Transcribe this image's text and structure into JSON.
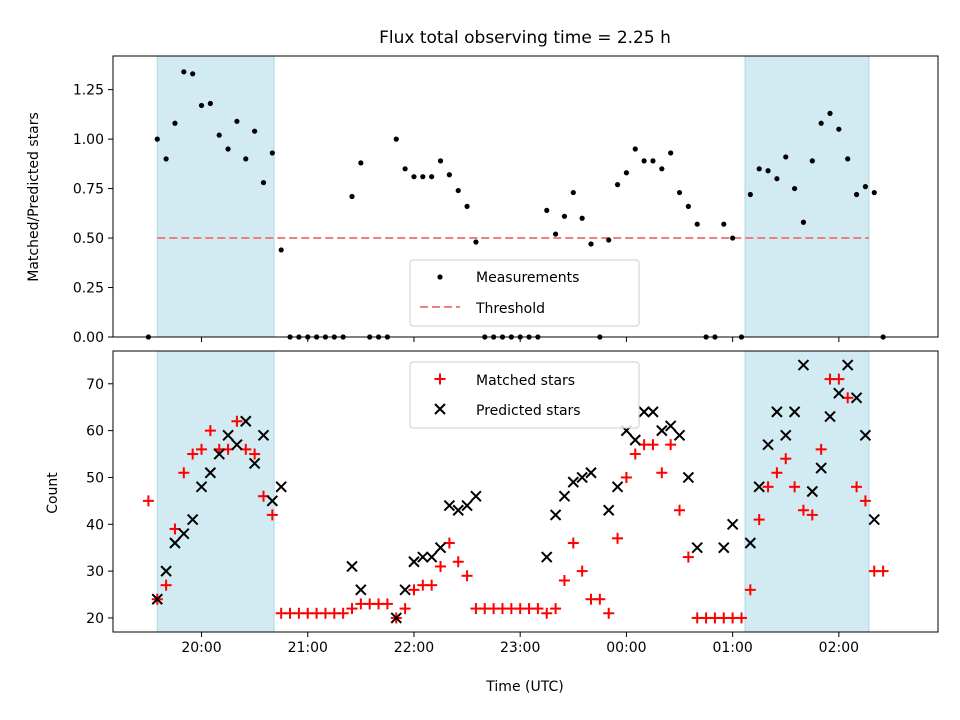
{
  "chart_data": {
    "title": "Flux total observing time = 2.25 h",
    "x_unit": "hours after 19:00 UTC (plotted axis)",
    "xlabel": "Time (UTC)",
    "xlim": [
      "19:10",
      "02:56"
    ],
    "x_ticks": [
      {
        "x": "20:00",
        "label": "20:00"
      },
      {
        "x": "21:00",
        "label": "21:00"
      },
      {
        "x": "22:00",
        "label": "22:00"
      },
      {
        "x": "23:00",
        "label": "23:00"
      },
      {
        "x": "00:00",
        "label": "00:00"
      },
      {
        "x": "01:00",
        "label": "01:00"
      },
      {
        "x": "02:00",
        "label": "02:00"
      }
    ],
    "shaded_spans": [
      [
        "19:35",
        "20:41"
      ],
      [
        "01:07",
        "02:17"
      ]
    ],
    "shade_color": "#add8e6",
    "top": {
      "type": "scatter",
      "ylabel": "Matched/Predicted stars",
      "ylim": [
        0,
        1.42
      ],
      "y_ticks": [
        "0.00",
        "0.25",
        "0.50",
        "0.75",
        "1.00",
        "1.25"
      ],
      "threshold": 0.5,
      "threshold_span": [
        "19:35",
        "02:17"
      ],
      "threshold_color": "#f08080",
      "legend": {
        "position": "lower center",
        "measurements": "Measurements",
        "threshold": "Threshold"
      },
      "measurements": [
        [
          "19:30",
          0
        ],
        [
          "19:35",
          1.0
        ],
        [
          "19:40",
          0.9
        ],
        [
          "19:45",
          1.08
        ],
        [
          "19:50",
          1.34
        ],
        [
          "19:55",
          1.33
        ],
        [
          "20:00",
          1.17
        ],
        [
          "20:05",
          1.18
        ],
        [
          "20:10",
          1.02
        ],
        [
          "20:15",
          0.95
        ],
        [
          "20:20",
          1.09
        ],
        [
          "20:25",
          0.9
        ],
        [
          "20:30",
          1.04
        ],
        [
          "20:35",
          0.78
        ],
        [
          "20:40",
          0.93
        ],
        [
          "20:45",
          0.44
        ],
        [
          "20:50",
          0
        ],
        [
          "20:55",
          0
        ],
        [
          "21:00",
          0
        ],
        [
          "21:05",
          0
        ],
        [
          "21:10",
          0
        ],
        [
          "21:15",
          0
        ],
        [
          "21:20",
          0
        ],
        [
          "21:25",
          0.71
        ],
        [
          "21:30",
          0.88
        ],
        [
          "21:35",
          0
        ],
        [
          "21:40",
          0
        ],
        [
          "21:45",
          0
        ],
        [
          "21:50",
          1.0
        ],
        [
          "21:55",
          0.85
        ],
        [
          "22:00",
          0.81
        ],
        [
          "22:05",
          0.81
        ],
        [
          "22:10",
          0.81
        ],
        [
          "22:15",
          0.89
        ],
        [
          "22:20",
          0.82
        ],
        [
          "22:25",
          0.74
        ],
        [
          "22:30",
          0.66
        ],
        [
          "22:35",
          0.48
        ],
        [
          "22:40",
          0
        ],
        [
          "22:45",
          0
        ],
        [
          "22:50",
          0
        ],
        [
          "22:55",
          0
        ],
        [
          "23:00",
          0
        ],
        [
          "23:05",
          0
        ],
        [
          "23:10",
          0
        ],
        [
          "23:15",
          0.64
        ],
        [
          "23:20",
          0.52
        ],
        [
          "23:25",
          0.61
        ],
        [
          "23:30",
          0.73
        ],
        [
          "23:35",
          0.6
        ],
        [
          "23:40",
          0.47
        ],
        [
          "23:45",
          0
        ],
        [
          "23:50",
          0.49
        ],
        [
          "23:55",
          0.77
        ],
        [
          "00:00",
          0.83
        ],
        [
          "00:05",
          0.95
        ],
        [
          "00:10",
          0.89
        ],
        [
          "00:15",
          0.89
        ],
        [
          "00:20",
          0.85
        ],
        [
          "00:25",
          0.93
        ],
        [
          "00:30",
          0.73
        ],
        [
          "00:35",
          0.66
        ],
        [
          "00:40",
          0.57
        ],
        [
          "00:45",
          0
        ],
        [
          "00:50",
          0
        ],
        [
          "00:55",
          0.57
        ],
        [
          "01:00",
          0.5
        ],
        [
          "01:05",
          0
        ],
        [
          "01:10",
          0.72
        ],
        [
          "01:15",
          0.85
        ],
        [
          "01:20",
          0.84
        ],
        [
          "01:25",
          0.8
        ],
        [
          "01:30",
          0.91
        ],
        [
          "01:35",
          0.75
        ],
        [
          "01:40",
          0.58
        ],
        [
          "01:45",
          0.89
        ],
        [
          "01:50",
          1.08
        ],
        [
          "01:55",
          1.13
        ],
        [
          "02:00",
          1.05
        ],
        [
          "02:05",
          0.9
        ],
        [
          "02:10",
          0.72
        ],
        [
          "02:15",
          0.76
        ],
        [
          "02:20",
          0.73
        ],
        [
          "02:25",
          0
        ]
      ]
    },
    "bottom": {
      "type": "scatter",
      "ylabel": "Count",
      "ylim": [
        17,
        77
      ],
      "y_ticks": [
        "20",
        "30",
        "40",
        "50",
        "60",
        "70"
      ],
      "legend": {
        "position": "upper center"
      },
      "series": [
        {
          "name": "Matched stars",
          "marker": "plus",
          "color": "#ff0000",
          "points": [
            [
              "19:30",
              45
            ],
            [
              "19:35",
              24
            ],
            [
              "19:40",
              27
            ],
            [
              "19:45",
              39
            ],
            [
              "19:50",
              51
            ],
            [
              "19:55",
              55
            ],
            [
              "20:00",
              56
            ],
            [
              "20:05",
              60
            ],
            [
              "20:10",
              56
            ],
            [
              "20:15",
              56
            ],
            [
              "20:20",
              62
            ],
            [
              "20:25",
              56
            ],
            [
              "20:30",
              55
            ],
            [
              "20:35",
              46
            ],
            [
              "20:40",
              42
            ],
            [
              "20:45",
              21
            ],
            [
              "20:50",
              21
            ],
            [
              "20:55",
              21
            ],
            [
              "21:00",
              21
            ],
            [
              "21:05",
              21
            ],
            [
              "21:10",
              21
            ],
            [
              "21:15",
              21
            ],
            [
              "21:20",
              21
            ],
            [
              "21:25",
              22
            ],
            [
              "21:30",
              23
            ],
            [
              "21:35",
              23
            ],
            [
              "21:40",
              23
            ],
            [
              "21:45",
              23
            ],
            [
              "21:50",
              20
            ],
            [
              "21:55",
              22
            ],
            [
              "22:00",
              26
            ],
            [
              "22:05",
              27
            ],
            [
              "22:10",
              27
            ],
            [
              "22:15",
              31
            ],
            [
              "22:20",
              36
            ],
            [
              "22:25",
              32
            ],
            [
              "22:30",
              29
            ],
            [
              "22:35",
              22
            ],
            [
              "22:40",
              22
            ],
            [
              "22:45",
              22
            ],
            [
              "22:50",
              22
            ],
            [
              "22:55",
              22
            ],
            [
              "23:00",
              22
            ],
            [
              "23:05",
              22
            ],
            [
              "23:10",
              22
            ],
            [
              "23:15",
              21
            ],
            [
              "23:20",
              22
            ],
            [
              "23:25",
              28
            ],
            [
              "23:30",
              36
            ],
            [
              "23:35",
              30
            ],
            [
              "23:40",
              24
            ],
            [
              "23:45",
              24
            ],
            [
              "23:50",
              21
            ],
            [
              "23:55",
              37
            ],
            [
              "00:00",
              50
            ],
            [
              "00:05",
              55
            ],
            [
              "00:10",
              57
            ],
            [
              "00:15",
              57
            ],
            [
              "00:20",
              51
            ],
            [
              "00:25",
              57
            ],
            [
              "00:30",
              43
            ],
            [
              "00:35",
              33
            ],
            [
              "00:40",
              20
            ],
            [
              "00:45",
              20
            ],
            [
              "00:50",
              20
            ],
            [
              "00:55",
              20
            ],
            [
              "01:00",
              20
            ],
            [
              "01:05",
              20
            ],
            [
              "01:10",
              26
            ],
            [
              "01:15",
              41
            ],
            [
              "01:20",
              48
            ],
            [
              "01:25",
              51
            ],
            [
              "01:30",
              54
            ],
            [
              "01:35",
              48
            ],
            [
              "01:40",
              43
            ],
            [
              "01:45",
              42
            ],
            [
              "01:50",
              56
            ],
            [
              "01:55",
              71
            ],
            [
              "02:00",
              71
            ],
            [
              "02:05",
              67
            ],
            [
              "02:10",
              48
            ],
            [
              "02:15",
              45
            ],
            [
              "02:20",
              30
            ],
            [
              "02:25",
              30
            ]
          ]
        },
        {
          "name": "Predicted stars",
          "marker": "x",
          "color": "#000000",
          "points": [
            [
              "19:35",
              24
            ],
            [
              "19:40",
              30
            ],
            [
              "19:45",
              36
            ],
            [
              "19:50",
              38
            ],
            [
              "19:55",
              41
            ],
            [
              "20:00",
              48
            ],
            [
              "20:05",
              51
            ],
            [
              "20:10",
              55
            ],
            [
              "20:15",
              59
            ],
            [
              "20:20",
              57
            ],
            [
              "20:25",
              62
            ],
            [
              "20:30",
              53
            ],
            [
              "20:35",
              59
            ],
            [
              "20:40",
              45
            ],
            [
              "20:45",
              48
            ],
            [
              "21:25",
              31
            ],
            [
              "21:30",
              26
            ],
            [
              "21:50",
              20
            ],
            [
              "21:55",
              26
            ],
            [
              "22:00",
              32
            ],
            [
              "22:05",
              33
            ],
            [
              "22:10",
              33
            ],
            [
              "22:15",
              35
            ],
            [
              "22:20",
              44
            ],
            [
              "22:25",
              43
            ],
            [
              "22:30",
              44
            ],
            [
              "22:35",
              46
            ],
            [
              "23:15",
              33
            ],
            [
              "23:20",
              42
            ],
            [
              "23:25",
              46
            ],
            [
              "23:30",
              49
            ],
            [
              "23:35",
              50
            ],
            [
              "23:40",
              51
            ],
            [
              "23:50",
              43
            ],
            [
              "23:55",
              48
            ],
            [
              "00:00",
              60
            ],
            [
              "00:05",
              58
            ],
            [
              "00:10",
              64
            ],
            [
              "00:15",
              64
            ],
            [
              "00:20",
              60
            ],
            [
              "00:25",
              61
            ],
            [
              "00:30",
              59
            ],
            [
              "00:35",
              50
            ],
            [
              "00:40",
              35
            ],
            [
              "00:55",
              35
            ],
            [
              "01:00",
              40
            ],
            [
              "01:10",
              36
            ],
            [
              "01:15",
              48
            ],
            [
              "01:20",
              57
            ],
            [
              "01:25",
              64
            ],
            [
              "01:30",
              59
            ],
            [
              "01:35",
              64
            ],
            [
              "01:40",
              74
            ],
            [
              "01:45",
              47
            ],
            [
              "01:50",
              52
            ],
            [
              "01:55",
              63
            ],
            [
              "02:00",
              68
            ],
            [
              "02:05",
              74
            ],
            [
              "02:10",
              67
            ],
            [
              "02:15",
              59
            ],
            [
              "02:20",
              41
            ]
          ]
        }
      ]
    }
  }
}
